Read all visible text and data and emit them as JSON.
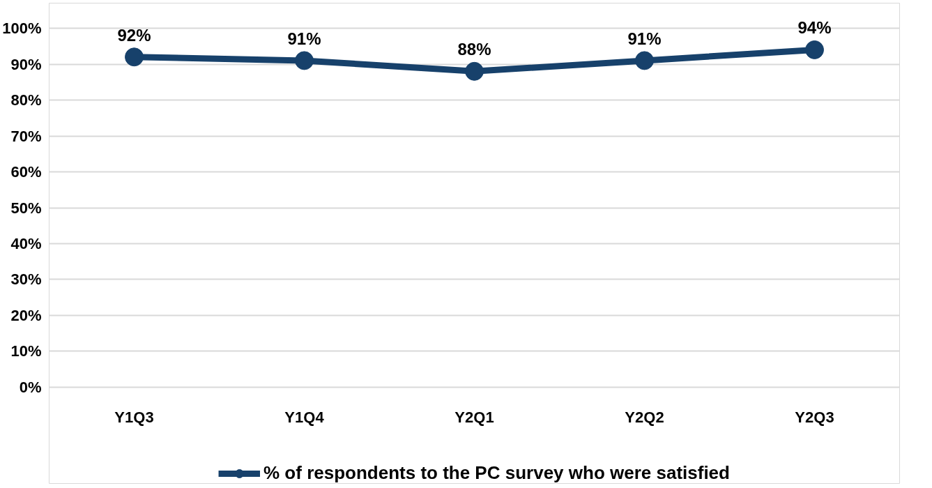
{
  "chart_data": {
    "type": "line",
    "categories": [
      "Y1Q3",
      "Y1Q4",
      "Y2Q1",
      "Y2Q2",
      "Y2Q3"
    ],
    "series": [
      {
        "name": "% of respondents to the PC survey who were satisfied",
        "color": "#17416b",
        "values": [
          92,
          91,
          88,
          91,
          94
        ]
      }
    ],
    "value_labels": [
      "92%",
      "91%",
      "88%",
      "91%",
      "94%"
    ],
    "ylim": [
      0,
      100
    ],
    "yticks": [
      {
        "value": 0,
        "label": "0%"
      },
      {
        "value": 10,
        "label": "10%"
      },
      {
        "value": 20,
        "label": "20%"
      },
      {
        "value": 30,
        "label": "30%"
      },
      {
        "value": 40,
        "label": "40%"
      },
      {
        "value": 50,
        "label": "50%"
      },
      {
        "value": 60,
        "label": "60%"
      },
      {
        "value": 70,
        "label": "70%"
      },
      {
        "value": 80,
        "label": "80%"
      },
      {
        "value": 90,
        "label": "90%"
      },
      {
        "value": 100,
        "label": "100%"
      }
    ],
    "grid": "y",
    "legend": "bottom",
    "marker": "circle",
    "line_style": "solid"
  }
}
